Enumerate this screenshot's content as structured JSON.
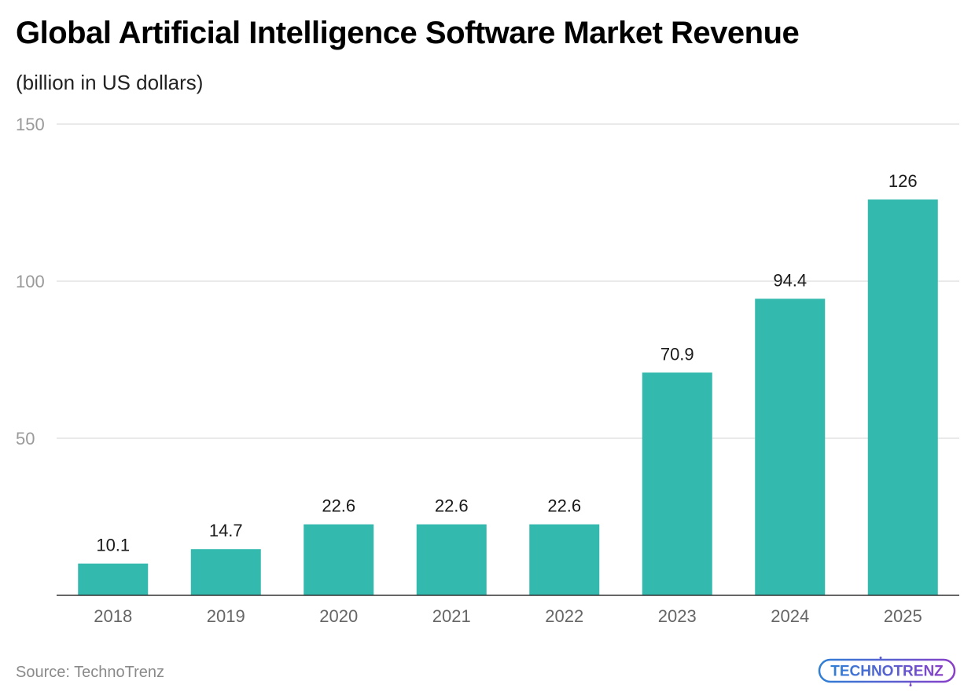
{
  "chart_data": {
    "type": "bar",
    "title": "Global Artificial Intelligence Software Market Revenue",
    "subtitle": "(billion in US dollars)",
    "categories": [
      "2018",
      "2019",
      "2020",
      "2021",
      "2022",
      "2023",
      "2024",
      "2025"
    ],
    "values": [
      10.1,
      14.7,
      22.6,
      22.6,
      22.6,
      70.9,
      94.4,
      126
    ],
    "value_labels": [
      "10.1",
      "14.7",
      "22.6",
      "22.6",
      "22.6",
      "70.9",
      "94.4",
      "126"
    ],
    "xlabel": "",
    "ylabel": "",
    "ylim": [
      0,
      150
    ],
    "yticks": [
      50,
      100,
      150
    ],
    "ytick_labels": [
      "50",
      "100",
      "150"
    ],
    "grid": true,
    "legend": "none",
    "bar_color": "#33b9ae"
  },
  "footer": {
    "source": "Source: TechnoTrenz",
    "logo_text": "TECHNOTRENZ"
  }
}
